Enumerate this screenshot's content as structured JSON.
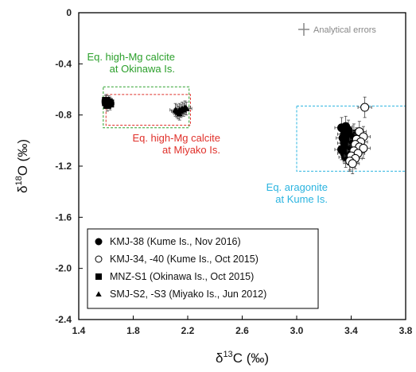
{
  "chart_data": {
    "type": "scatter",
    "title": "",
    "xlabel": {
      "prefix": "δ",
      "sup": "13",
      "rest": "C (‰)"
    },
    "ylabel": {
      "prefix": "δ",
      "sup": "18",
      "rest": "O (‰)"
    },
    "xlim": [
      1.4,
      3.8
    ],
    "ylim": [
      -2.4,
      0
    ],
    "xticks": [
      1.4,
      1.8,
      2.2,
      2.6,
      3.0,
      3.4,
      3.8
    ],
    "yticks": [
      0,
      -0.4,
      -0.8,
      -1.2,
      -1.6,
      -2.0,
      -2.4
    ],
    "xtick_labels": [
      "1.4",
      "1.8",
      "2.2",
      "2.6",
      "3.0",
      "3.4",
      "3.8"
    ],
    "ytick_labels": [
      "0",
      "-0.4",
      "-0.8",
      "-1.2",
      "-1.6",
      "-2.0",
      "-2.4"
    ],
    "grid": false,
    "legend_position": "bottom-left",
    "analytical_errors_label": "Analytical errors",
    "equilibrium_boxes": [
      {
        "id": "okinawa",
        "label_lines": [
          "Eq. high-Mg calcite",
          "at Okinawa Is."
        ],
        "color": "#2ca02c",
        "x_range": [
          1.58,
          2.21
        ],
        "y_range": [
          -0.58,
          -0.9
        ]
      },
      {
        "id": "miyako",
        "label_lines": [
          "Eq. high-Mg calcite",
          "at Miyako Is."
        ],
        "color": "#e0302a",
        "x_range": [
          1.6,
          2.22
        ],
        "y_range": [
          -0.64,
          -0.88
        ]
      },
      {
        "id": "kume",
        "label_lines": [
          "Eq. aragonite",
          "at Kume Is."
        ],
        "color": "#2bb4e0",
        "x_range": [
          3.0,
          3.8
        ],
        "y_range": [
          -0.73,
          -1.24
        ]
      }
    ],
    "series": [
      {
        "name": "KMJ-38 (Kume Is., Nov 2016)",
        "marker": "filled-circle",
        "x_err": 0.05,
        "y_err": 0.08,
        "points": [
          [
            3.33,
            -0.9
          ],
          [
            3.36,
            -0.89
          ],
          [
            3.38,
            -0.92
          ],
          [
            3.35,
            -0.95
          ],
          [
            3.38,
            -0.97
          ],
          [
            3.34,
            -0.98
          ],
          [
            3.37,
            -1.0
          ],
          [
            3.4,
            -1.0
          ],
          [
            3.35,
            -1.02
          ],
          [
            3.38,
            -1.03
          ],
          [
            3.42,
            -1.02
          ],
          [
            3.36,
            -1.05
          ],
          [
            3.39,
            -1.06
          ],
          [
            3.33,
            -1.07
          ],
          [
            3.37,
            -1.08
          ],
          [
            3.41,
            -1.08
          ],
          [
            3.35,
            -1.1
          ],
          [
            3.38,
            -1.11
          ],
          [
            3.4,
            -1.12
          ],
          [
            3.36,
            -1.13
          ],
          [
            3.39,
            -1.15
          ],
          [
            3.42,
            -0.95
          ],
          [
            3.44,
            -0.98
          ],
          [
            3.43,
            -1.05
          ]
        ]
      },
      {
        "name": "KMJ-34, -40 (Kume Is., Oct 2015)",
        "marker": "open-circle",
        "x_err": 0.05,
        "y_err": 0.08,
        "points": [
          [
            3.5,
            -0.74
          ],
          [
            3.46,
            -0.93
          ],
          [
            3.49,
            -0.97
          ],
          [
            3.44,
            -0.99
          ],
          [
            3.47,
            -1.01
          ],
          [
            3.43,
            -1.03
          ],
          [
            3.46,
            -1.05
          ],
          [
            3.49,
            -1.06
          ],
          [
            3.42,
            -1.08
          ],
          [
            3.45,
            -1.1
          ],
          [
            3.4,
            -1.12
          ],
          [
            3.43,
            -1.14
          ],
          [
            3.39,
            -1.16
          ],
          [
            3.41,
            -1.18
          ]
        ]
      },
      {
        "name": "MNZ-S1 (Okinawa Is., Oct 2015)",
        "marker": "filled-square",
        "x_err": 0.03,
        "y_err": 0.05,
        "points": [
          [
            1.6,
            -0.7
          ],
          [
            1.62,
            -0.7
          ],
          [
            1.61,
            -0.72
          ],
          [
            1.63,
            -0.71
          ],
          [
            1.6,
            -0.69
          ]
        ]
      },
      {
        "name": "SMJ-S2, -S3 (Miyako Is., Jun 2012)",
        "marker": "filled-triangle",
        "x_err": 0.04,
        "y_err": 0.05,
        "points": [
          [
            2.12,
            -0.77
          ],
          [
            2.14,
            -0.76
          ],
          [
            2.16,
            -0.75
          ],
          [
            2.13,
            -0.78
          ],
          [
            2.15,
            -0.77
          ],
          [
            2.18,
            -0.74
          ],
          [
            2.17,
            -0.76
          ],
          [
            2.14,
            -0.79
          ],
          [
            2.11,
            -0.76
          ],
          [
            2.19,
            -0.75
          ]
        ]
      }
    ]
  }
}
